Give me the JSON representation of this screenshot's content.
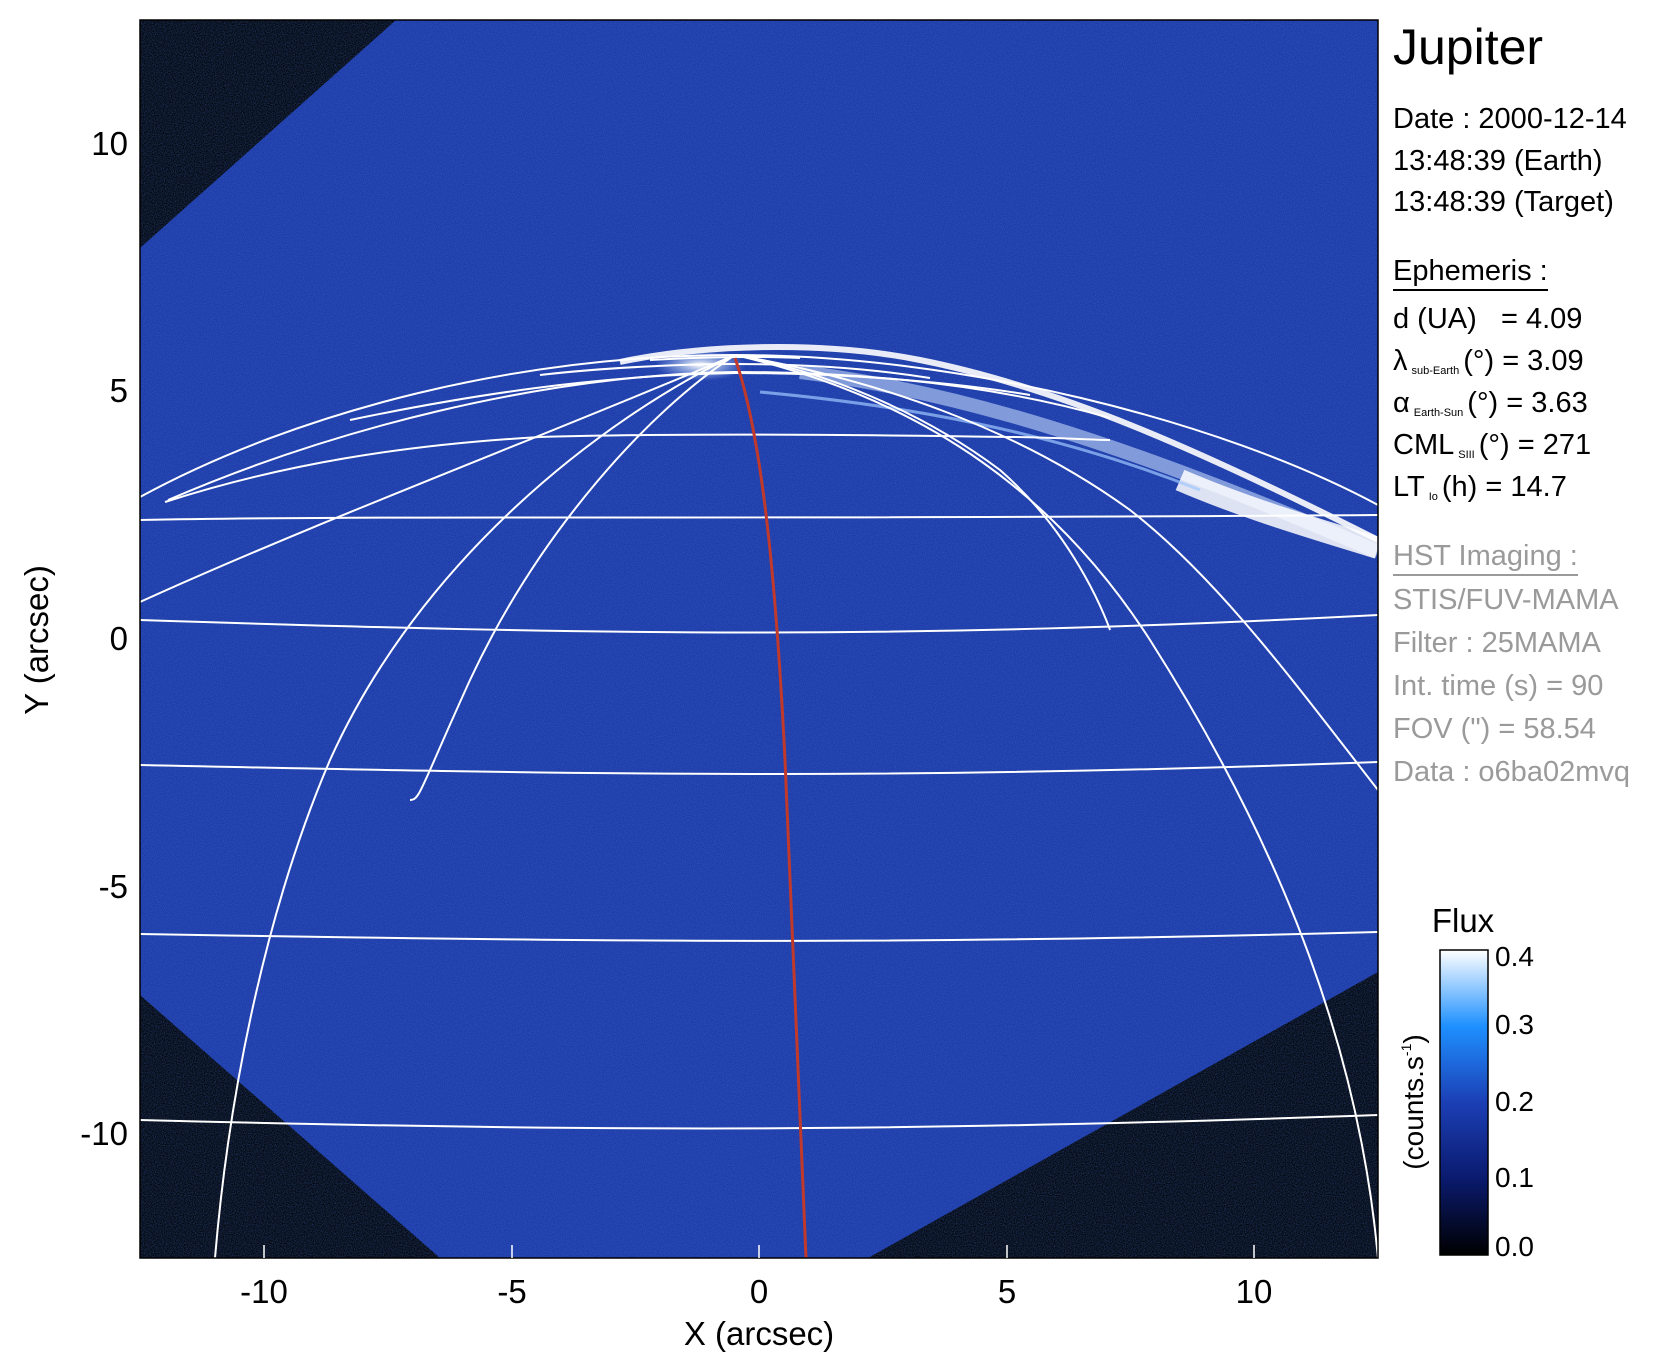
{
  "title": "Jupiter",
  "date": {
    "label": "Date : 2000-12-14",
    "earth": "13:48:39 (Earth)",
    "target": "13:48:39 (Target)"
  },
  "ephemeris": {
    "heading": "Ephemeris :",
    "d": {
      "label": "d (UA)",
      "value": "= 4.09"
    },
    "lambda": {
      "symbol": "λ",
      "sub": "sub-Earth",
      "unit": "(°)",
      "value": "= 3.09"
    },
    "alpha": {
      "symbol": "α",
      "sub": "Earth-Sun",
      "unit": "(°)",
      "value": "= 3.63"
    },
    "cml": {
      "symbol": "CML",
      "sub": "SIII",
      "unit": "(°)",
      "value": "= 271"
    },
    "lt": {
      "symbol": "LT",
      "sub": "Io",
      "unit": "(h)",
      "value": "= 14.7"
    }
  },
  "hst": {
    "heading": "HST Imaging :",
    "instrument": "STIS/FUV-MAMA",
    "filter": "Filter : 25MAMA",
    "int_time": "Int. time (s) = 90",
    "fov": "FOV (\") = 58.54",
    "data": "Data : o6ba02mvq"
  },
  "axes": {
    "xlabel": "X (arcsec)",
    "ylabel": "Y (arcsec)",
    "xticks": [
      "-10",
      "-5",
      "0",
      "5",
      "10"
    ],
    "yticks": [
      "10",
      "5",
      "0",
      "-5",
      "-10"
    ],
    "xrange": [
      -12.5,
      12.5
    ],
    "yrange": [
      -12.5,
      12.5
    ]
  },
  "colorbar": {
    "title": "Flux",
    "unit": "(counts.s",
    "unit_sup": "-1",
    "unit_close": ")",
    "ticks": [
      "0.4",
      "0.3",
      "0.2",
      "0.1",
      "0.0"
    ],
    "range": [
      0.0,
      0.4
    ]
  },
  "colors": {
    "background": "#000000",
    "image_blue": "#1d3fb5",
    "aurora": "#ffffff",
    "grid": "#ffffff",
    "io_footprint": "#c0392b"
  }
}
